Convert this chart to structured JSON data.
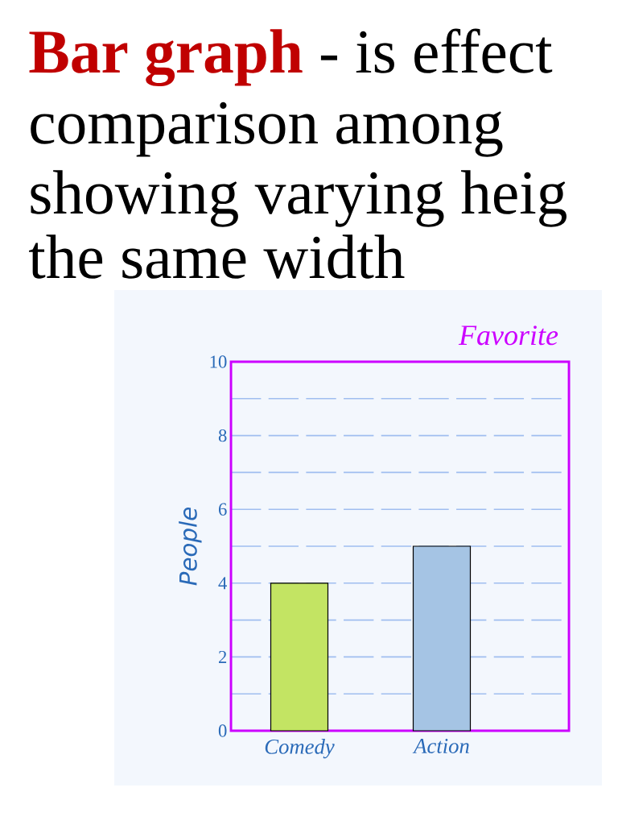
{
  "chart_data": {
    "type": "bar",
    "title": "Favorite",
    "annotations": [
      "Bar graph",
      "- is effect",
      "comparison among",
      "showing varying heig",
      "the same width"
    ],
    "ylabel": "People",
    "categories": [
      "Comedy",
      "Action"
    ],
    "values": [
      4,
      5
    ],
    "colors": [
      "#c3e463",
      "#a5c4e4"
    ],
    "ylim": [
      0,
      10
    ],
    "yticks": [
      0,
      2,
      4,
      6,
      8,
      10
    ],
    "grid": "y"
  }
}
